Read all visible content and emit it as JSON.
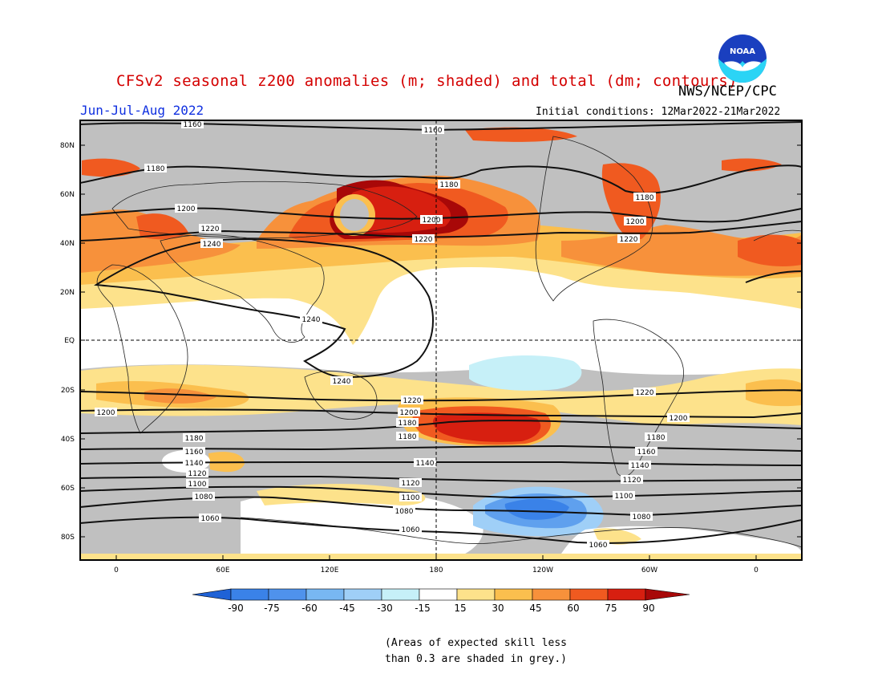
{
  "header": {
    "title": "CFSv2 seasonal z200 anomalies (m; shaded) and total (dm; contours)",
    "organization": "NWS/NCEP/CPC",
    "season": "Jun-Jul-Aug 2022",
    "initial_conditions": "Initial conditions: 12Mar2022-21Mar2022",
    "logo_text": "NOAA"
  },
  "map": {
    "lat_labels": [
      "80N",
      "60N",
      "40N",
      "20N",
      "EQ",
      "20S",
      "40S",
      "60S",
      "80S"
    ],
    "lon_labels": [
      "0",
      "60E",
      "120E",
      "180",
      "120W",
      "60W",
      "0"
    ],
    "colors": {
      "grey_low_skill": "#c0c0c0",
      "neg_90": "#1f62d6",
      "neg_75": "#3a82e8",
      "neg_60": "#5fa0ee",
      "neg_45": "#9fcff7",
      "neg_30": "#c6f0f8",
      "neutral": "#ffffff",
      "pos_15": "#fde28b",
      "pos_30": "#fbbf4e",
      "pos_45": "#f7913b",
      "pos_60": "#f05a20",
      "pos_75": "#d71f10",
      "pos_90": "#a80808"
    },
    "contours": [
      {
        "label": "1160"
      },
      {
        "label": "1180"
      },
      {
        "label": "1200"
      },
      {
        "label": "1220"
      },
      {
        "label": "1240"
      },
      {
        "label": "1140"
      },
      {
        "label": "1120"
      },
      {
        "label": "1100"
      },
      {
        "label": "1080"
      },
      {
        "label": "1060"
      }
    ]
  },
  "colorbar": {
    "ticks": [
      "-90",
      "-75",
      "-60",
      "-45",
      "-30",
      "-15",
      "15",
      "30",
      "45",
      "60",
      "75",
      "90"
    ]
  },
  "note": {
    "line1": "(Areas of expected skill less",
    "line2": "than 0.3 are shaded in grey.)"
  }
}
